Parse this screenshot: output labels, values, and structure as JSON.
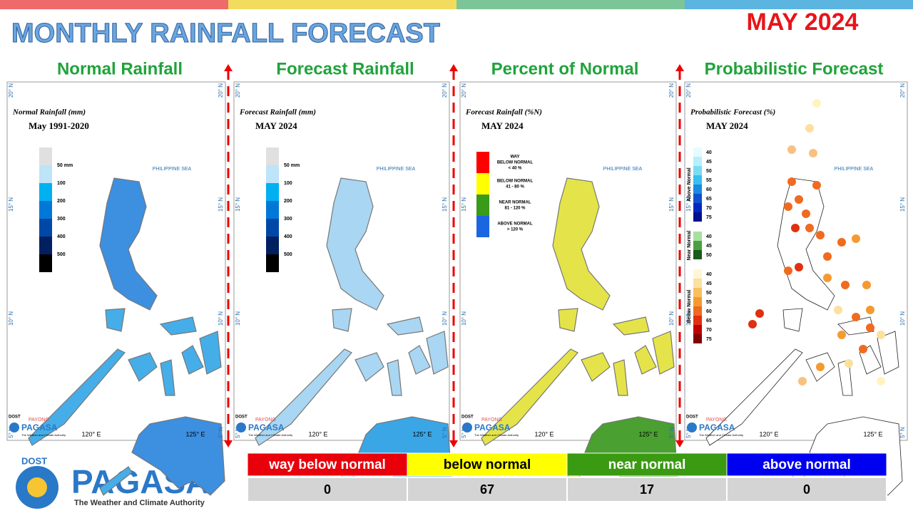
{
  "header": {
    "title": "MONTHLY RAINFALL FORECAST",
    "date": "MAY 2024"
  },
  "panels": [
    {
      "title": "Normal Rainfall",
      "map_title": "Normal Rainfall (mm)",
      "map_subtitle": "May 1991-2020",
      "legend": [
        "50 mm",
        "100",
        "200",
        "300",
        "400",
        "500"
      ]
    },
    {
      "title": "Forecast Rainfall",
      "map_title": "Forecast Rainfall (mm)",
      "map_subtitle": "MAY 2024",
      "legend": [
        "50 mm",
        "100",
        "200",
        "300",
        "400",
        "500"
      ]
    },
    {
      "title": "Percent of Normal",
      "map_title": "Forecast Rainfall (%N)",
      "map_subtitle": "MAY 2024",
      "legend": [
        [
          "WAY",
          "BELOW NORMAL",
          "< 40 %"
        ],
        [
          "BELOW NORMAL",
          "41 - 80 %"
        ],
        [
          "NEAR NORMAL",
          "81 - 120 %"
        ],
        [
          "ABOVE NORMAL",
          "> 120 %"
        ]
      ]
    },
    {
      "title": "Probabilistic Forecast",
      "map_title": "Probabilistic Forecast (%)",
      "map_subtitle": "MAY 2024",
      "legend_groups": [
        {
          "name": "Above Normal",
          "labels": [
            "40",
            "45",
            "50",
            "55",
            "60",
            "65",
            "70",
            "75"
          ]
        },
        {
          "name": "Near Normal",
          "labels": [
            "40",
            "45",
            "50"
          ]
        },
        {
          "name": "Below Normal",
          "labels": [
            "40",
            "45",
            "50",
            "55",
            "60",
            "65",
            "70",
            "75"
          ]
        }
      ]
    }
  ],
  "map_labels": {
    "sea": "PHILIPPINE SEA",
    "lat": [
      "20° N",
      "15° N",
      "10° N",
      "5° N"
    ],
    "lon": [
      "120° E",
      "125° E"
    ]
  },
  "panel_logo": {
    "dost": "DOST",
    "payong": "PAYONG",
    "pagasa": "PAGASA",
    "tagline": "The Weather and Climate Authority"
  },
  "table": {
    "headers": [
      "way below normal",
      "below normal",
      "near normal",
      "above normal"
    ],
    "values": [
      0,
      67,
      17,
      0
    ]
  },
  "logo": {
    "dost": "DOST",
    "name": "PAGASA",
    "tagline": "The Weather and Climate Authority"
  }
}
